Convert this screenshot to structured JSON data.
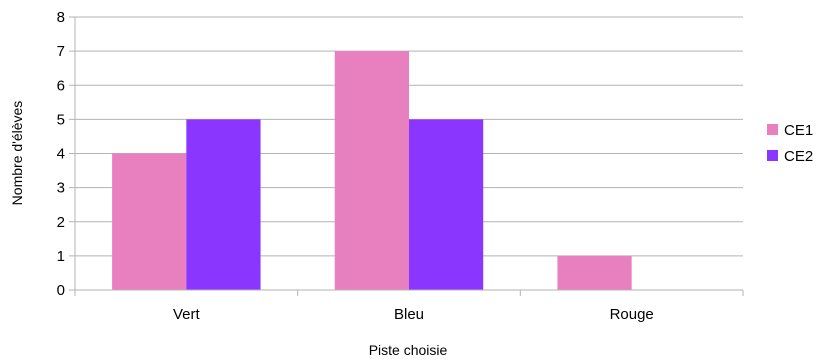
{
  "chart_data": {
    "type": "bar",
    "title": "",
    "xlabel": "Piste choisie",
    "ylabel": "Nombre d'élèves",
    "categories": [
      "Vert",
      "Bleu",
      "Rouge"
    ],
    "series": [
      {
        "name": "CE1",
        "values": [
          4,
          7,
          1
        ],
        "color": "#e880c0"
      },
      {
        "name": "CE2",
        "values": [
          5,
          5,
          0
        ],
        "color": "#8b36ff"
      }
    ],
    "ylim": [
      0,
      8
    ],
    "yticks": [
      "0",
      "1",
      "2",
      "3",
      "4",
      "5",
      "6",
      "7",
      "8"
    ],
    "grid": true,
    "legend": "right"
  }
}
